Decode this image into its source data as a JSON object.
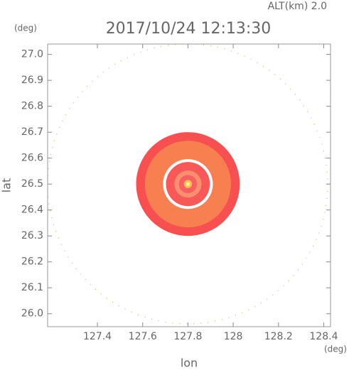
{
  "chart_data": {
    "type": "radar-map",
    "title": "2017/10/24 12:13:30",
    "altitude_label": "ALT(km) 2.0",
    "x_label": "lon",
    "y_label": "lat",
    "x_unit": "(deg)",
    "y_unit": "(deg)",
    "xlim": [
      127.18,
      128.43
    ],
    "ylim": [
      25.95,
      27.04
    ],
    "xticks": [
      127.4,
      127.6,
      127.8,
      128.0,
      128.2,
      128.4
    ],
    "yticks": [
      26.0,
      26.1,
      26.2,
      26.3,
      26.4,
      26.5,
      26.6,
      26.7,
      26.8,
      26.9,
      27.0
    ],
    "center": [
      127.8,
      26.5
    ],
    "rings": [
      {
        "rx": 0.229,
        "ry": 0.2,
        "color": "#f85050"
      },
      {
        "rx": 0.19,
        "ry": 0.167,
        "color": "#f88050"
      },
      {
        "rx": 0.11,
        "ry": 0.096,
        "color": "#ffffff"
      },
      {
        "rx": 0.097,
        "ry": 0.085,
        "color": "#f85858"
      },
      {
        "rx": 0.06,
        "ry": 0.052,
        "color": "#f89070"
      },
      {
        "rx": 0.04,
        "ry": 0.035,
        "color": "#f86060"
      },
      {
        "rx": 0.018,
        "ry": 0.016,
        "color": "#f8c050"
      },
      {
        "rx": 0.008,
        "ry": 0.007,
        "color": "#fff0a0"
      }
    ]
  }
}
